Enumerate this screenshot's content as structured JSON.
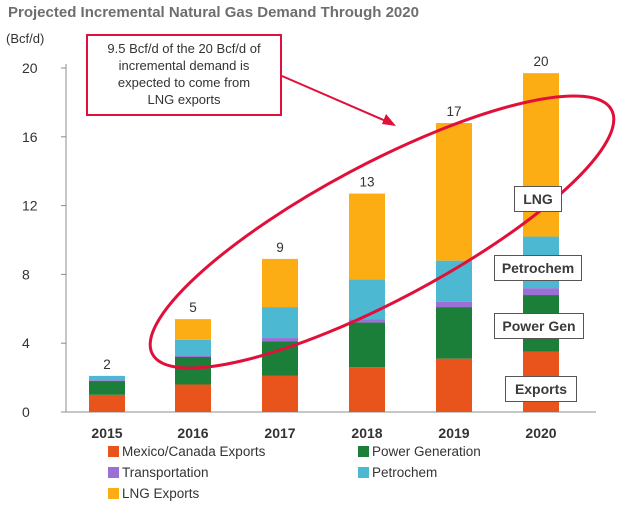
{
  "chart_data": {
    "type": "bar",
    "stacked": true,
    "title": "Projected Incremental Natural Gas Demand Through 2020",
    "ylabel": "(Bcf/d)",
    "xlabel": "",
    "ylim": [
      0,
      20
    ],
    "yticks": [
      0,
      4,
      8,
      12,
      16,
      20
    ],
    "categories": [
      "2015",
      "2016",
      "2017",
      "2018",
      "2019",
      "2020"
    ],
    "totals_labels": [
      "2",
      "5",
      "9",
      "13",
      "17",
      "20"
    ],
    "series": [
      {
        "name": "Mexico/Canada Exports",
        "color": "#e8541c",
        "values": [
          1.0,
          1.6,
          2.1,
          2.6,
          3.1,
          3.5
        ]
      },
      {
        "name": "Power Generation",
        "color": "#1b7f3a",
        "values": [
          0.8,
          1.6,
          2.0,
          2.6,
          3.0,
          3.3
        ]
      },
      {
        "name": "Transportation",
        "color": "#9a6fd6",
        "values": [
          0.05,
          0.1,
          0.2,
          0.2,
          0.3,
          0.4
        ]
      },
      {
        "name": "Petrochem",
        "color": "#4db8d2",
        "values": [
          0.25,
          0.9,
          1.8,
          2.3,
          2.4,
          3.0
        ]
      },
      {
        "name": "LNG Exports",
        "color": "#fcad14",
        "values": [
          0.0,
          1.2,
          2.8,
          5.0,
          8.0,
          9.5
        ]
      }
    ],
    "annotation": "9.5 Bcf/d of the 20 Bcf/d of incremental demand is expected to come from LNG exports",
    "segment_labels": [
      "LNG",
      "Petrochem",
      "Power Gen",
      "Exports"
    ],
    "legend": [
      "Mexico/Canada Exports",
      "Power Generation",
      "Transportation",
      "Petrochem",
      "LNG Exports"
    ]
  },
  "annotation_lines": [
    "9.5 Bcf/d of the 20 Bcf/d of",
    "incremental demand is",
    "expected to come from",
    "LNG exports"
  ],
  "colors": {
    "axis": "#8c8c8c",
    "ellipse": "#e0103a",
    "text": "#333333"
  }
}
